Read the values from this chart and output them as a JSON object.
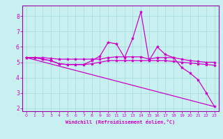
{
  "xlabel": "Windchill (Refroidissement éolien,°C)",
  "bg_color": "#c8f0f0",
  "line_color": "#cc00cc",
  "grid_color": "#aadddd",
  "spine_color": "#9900aa",
  "xlim": [
    -0.5,
    23.5
  ],
  "ylim": [
    1.8,
    8.7
  ],
  "yticks": [
    2,
    3,
    4,
    5,
    6,
    7,
    8
  ],
  "xticks": [
    0,
    1,
    2,
    3,
    4,
    5,
    6,
    7,
    8,
    9,
    10,
    11,
    12,
    13,
    14,
    15,
    16,
    17,
    18,
    19,
    20,
    21,
    22,
    23
  ],
  "series": [
    {
      "x": [
        0,
        1,
        2,
        3,
        4,
        5,
        6,
        7,
        8,
        9,
        10,
        11,
        12,
        13,
        14,
        15,
        16,
        17,
        18,
        19,
        20,
        21,
        22,
        23
      ],
      "y": [
        5.3,
        5.3,
        5.3,
        5.25,
        5.2,
        5.2,
        5.2,
        5.2,
        5.2,
        5.2,
        5.3,
        5.35,
        5.35,
        5.35,
        5.35,
        5.2,
        5.3,
        5.3,
        5.3,
        5.2,
        5.1,
        5.05,
        5.0,
        5.0
      ]
    },
    {
      "x": [
        0,
        1,
        2,
        3,
        4,
        5,
        6,
        7,
        8,
        9,
        10,
        11,
        12,
        13,
        14,
        15,
        16,
        17,
        18,
        19,
        20,
        21,
        22,
        23
      ],
      "y": [
        5.3,
        5.3,
        5.2,
        5.1,
        4.9,
        4.85,
        4.85,
        4.85,
        4.9,
        5.0,
        5.1,
        5.1,
        5.1,
        5.1,
        5.1,
        5.1,
        5.1,
        5.1,
        5.05,
        5.0,
        4.95,
        4.9,
        4.85,
        4.8
      ]
    },
    {
      "x": [
        0,
        1,
        2,
        3,
        4,
        5,
        6,
        7,
        8,
        9,
        10,
        11,
        12,
        13,
        14,
        15,
        16,
        17,
        18,
        19,
        20,
        21,
        22,
        23
      ],
      "y": [
        5.3,
        5.3,
        5.2,
        5.1,
        4.9,
        4.85,
        4.85,
        4.85,
        5.1,
        5.4,
        6.3,
        6.2,
        5.3,
        6.55,
        8.3,
        5.1,
        6.0,
        5.5,
        5.3,
        4.65,
        4.3,
        3.85,
        3.0,
        2.1
      ]
    },
    {
      "x": [
        0,
        23
      ],
      "y": [
        5.3,
        2.1
      ]
    }
  ]
}
